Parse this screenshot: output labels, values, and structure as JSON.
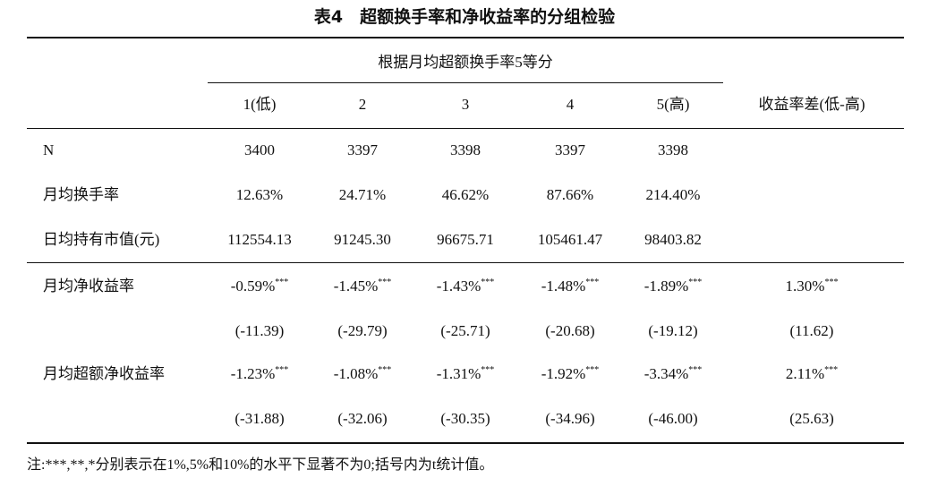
{
  "header": {
    "title": "表4　超额换手率和净收益率的分组检验"
  },
  "table": {
    "group_header": "根据月均超额换手率5等分",
    "columns": [
      "1(低)",
      "2",
      "3",
      "4",
      "5(高)",
      "收益率差(低-高)"
    ],
    "rows": [
      {
        "label": "N",
        "cells": [
          "3400",
          "3397",
          "3398",
          "3397",
          "3398"
        ]
      },
      {
        "label": "月均换手率",
        "cells": [
          "12.63%",
          "24.71%",
          "46.62%",
          "87.66%",
          "214.40%"
        ]
      },
      {
        "label": "日均持有市值(元)",
        "cells": [
          "112554.13",
          "91245.30",
          "96675.71",
          "105461.47",
          "98403.82"
        ]
      },
      {
        "label": "月均净收益率",
        "cells": [
          {
            "text": "-0.59%",
            "sup": "***"
          },
          {
            "text": "-1.45%",
            "sup": "***"
          },
          {
            "text": "-1.43%",
            "sup": "***"
          },
          {
            "text": "-1.48%",
            "sup": "***"
          },
          {
            "text": "-1.89%",
            "sup": "***"
          },
          {
            "text": "1.30%",
            "sup": "***"
          }
        ]
      },
      {
        "cells": [
          "(-11.39)",
          "(-29.79)",
          "(-25.71)",
          "(-20.68)",
          "(-19.12)",
          "(11.62)"
        ]
      },
      {
        "label": "月均超额净收益率",
        "cells": [
          {
            "text": "-1.23%",
            "sup": "***"
          },
          {
            "text": "-1.08%",
            "sup": "***"
          },
          {
            "text": "-1.31%",
            "sup": "***"
          },
          {
            "text": "-1.92%",
            "sup": "***"
          },
          {
            "text": "-3.34%",
            "sup": "***"
          },
          {
            "text": "2.11%",
            "sup": "***"
          }
        ]
      },
      {
        "cells": [
          "(-31.88)",
          "(-32.06)",
          "(-30.35)",
          "(-34.96)",
          "(-46.00)",
          "(25.63)"
        ]
      }
    ]
  },
  "note": "注:***,**,*分别表示在1%,5%和10%的水平下显著不为0;括号内为t统计值。"
}
